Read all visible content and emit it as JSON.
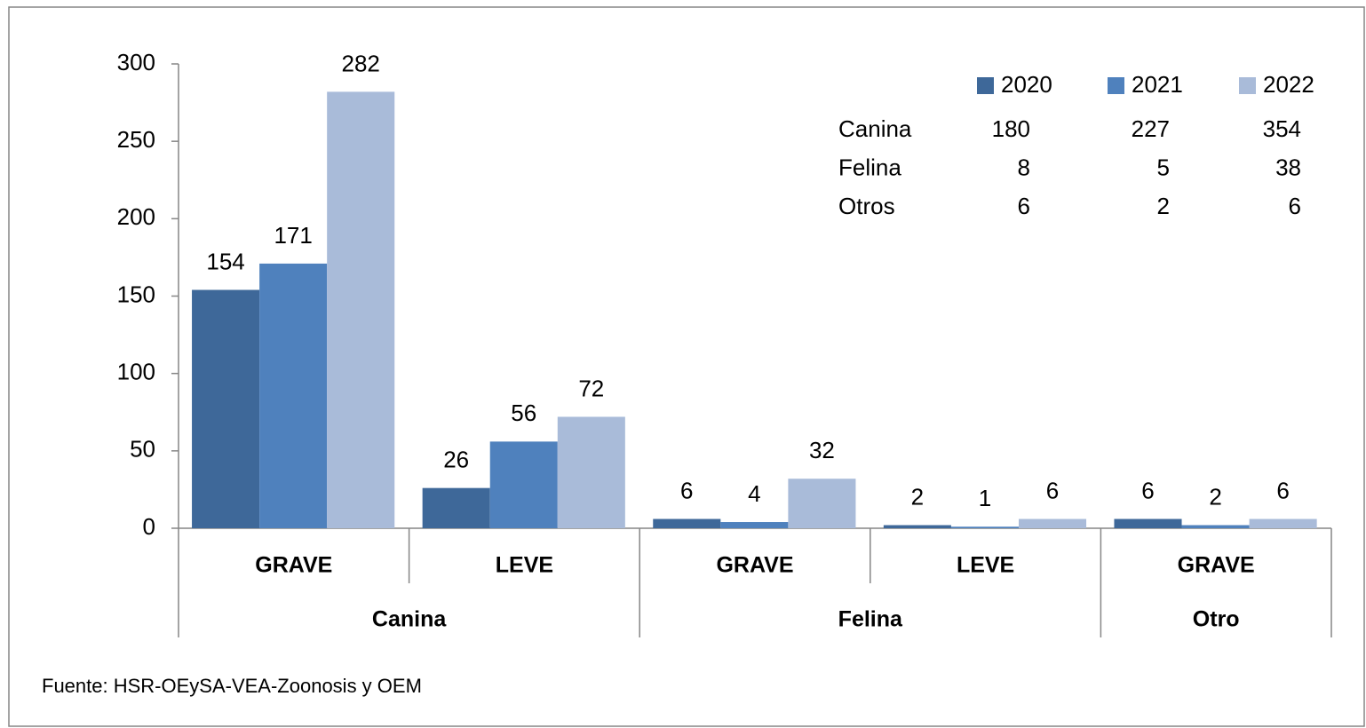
{
  "chart_data": {
    "type": "bar",
    "categories": [
      "GRAVE",
      "LEVE",
      "GRAVE",
      "LEVE",
      "GRAVE"
    ],
    "category_groups": [
      "Canina",
      "Canina",
      "Felina",
      "Felina",
      "Otro"
    ],
    "series": [
      {
        "name": "2020",
        "color": "#3e6899",
        "values": [
          154,
          26,
          6,
          2,
          6
        ]
      },
      {
        "name": "2021",
        "color": "#4f81bd",
        "values": [
          171,
          56,
          4,
          1,
          2
        ]
      },
      {
        "name": "2022",
        "color": "#a9bbd9",
        "values": [
          282,
          72,
          32,
          6,
          6
        ]
      }
    ],
    "ylim": [
      0,
      300
    ],
    "yticks": [
      0,
      50,
      100,
      150,
      200,
      250,
      300
    ],
    "table": {
      "rows": [
        {
          "name": "Canina",
          "values": [
            180,
            227,
            354
          ]
        },
        {
          "name": "Felina",
          "values": [
            8,
            5,
            38
          ]
        },
        {
          "name": "Otros",
          "values": [
            6,
            2,
            6
          ]
        }
      ]
    },
    "source": "Fuente: HSR-OEySA-VEA-Zoonosis y OEM"
  }
}
